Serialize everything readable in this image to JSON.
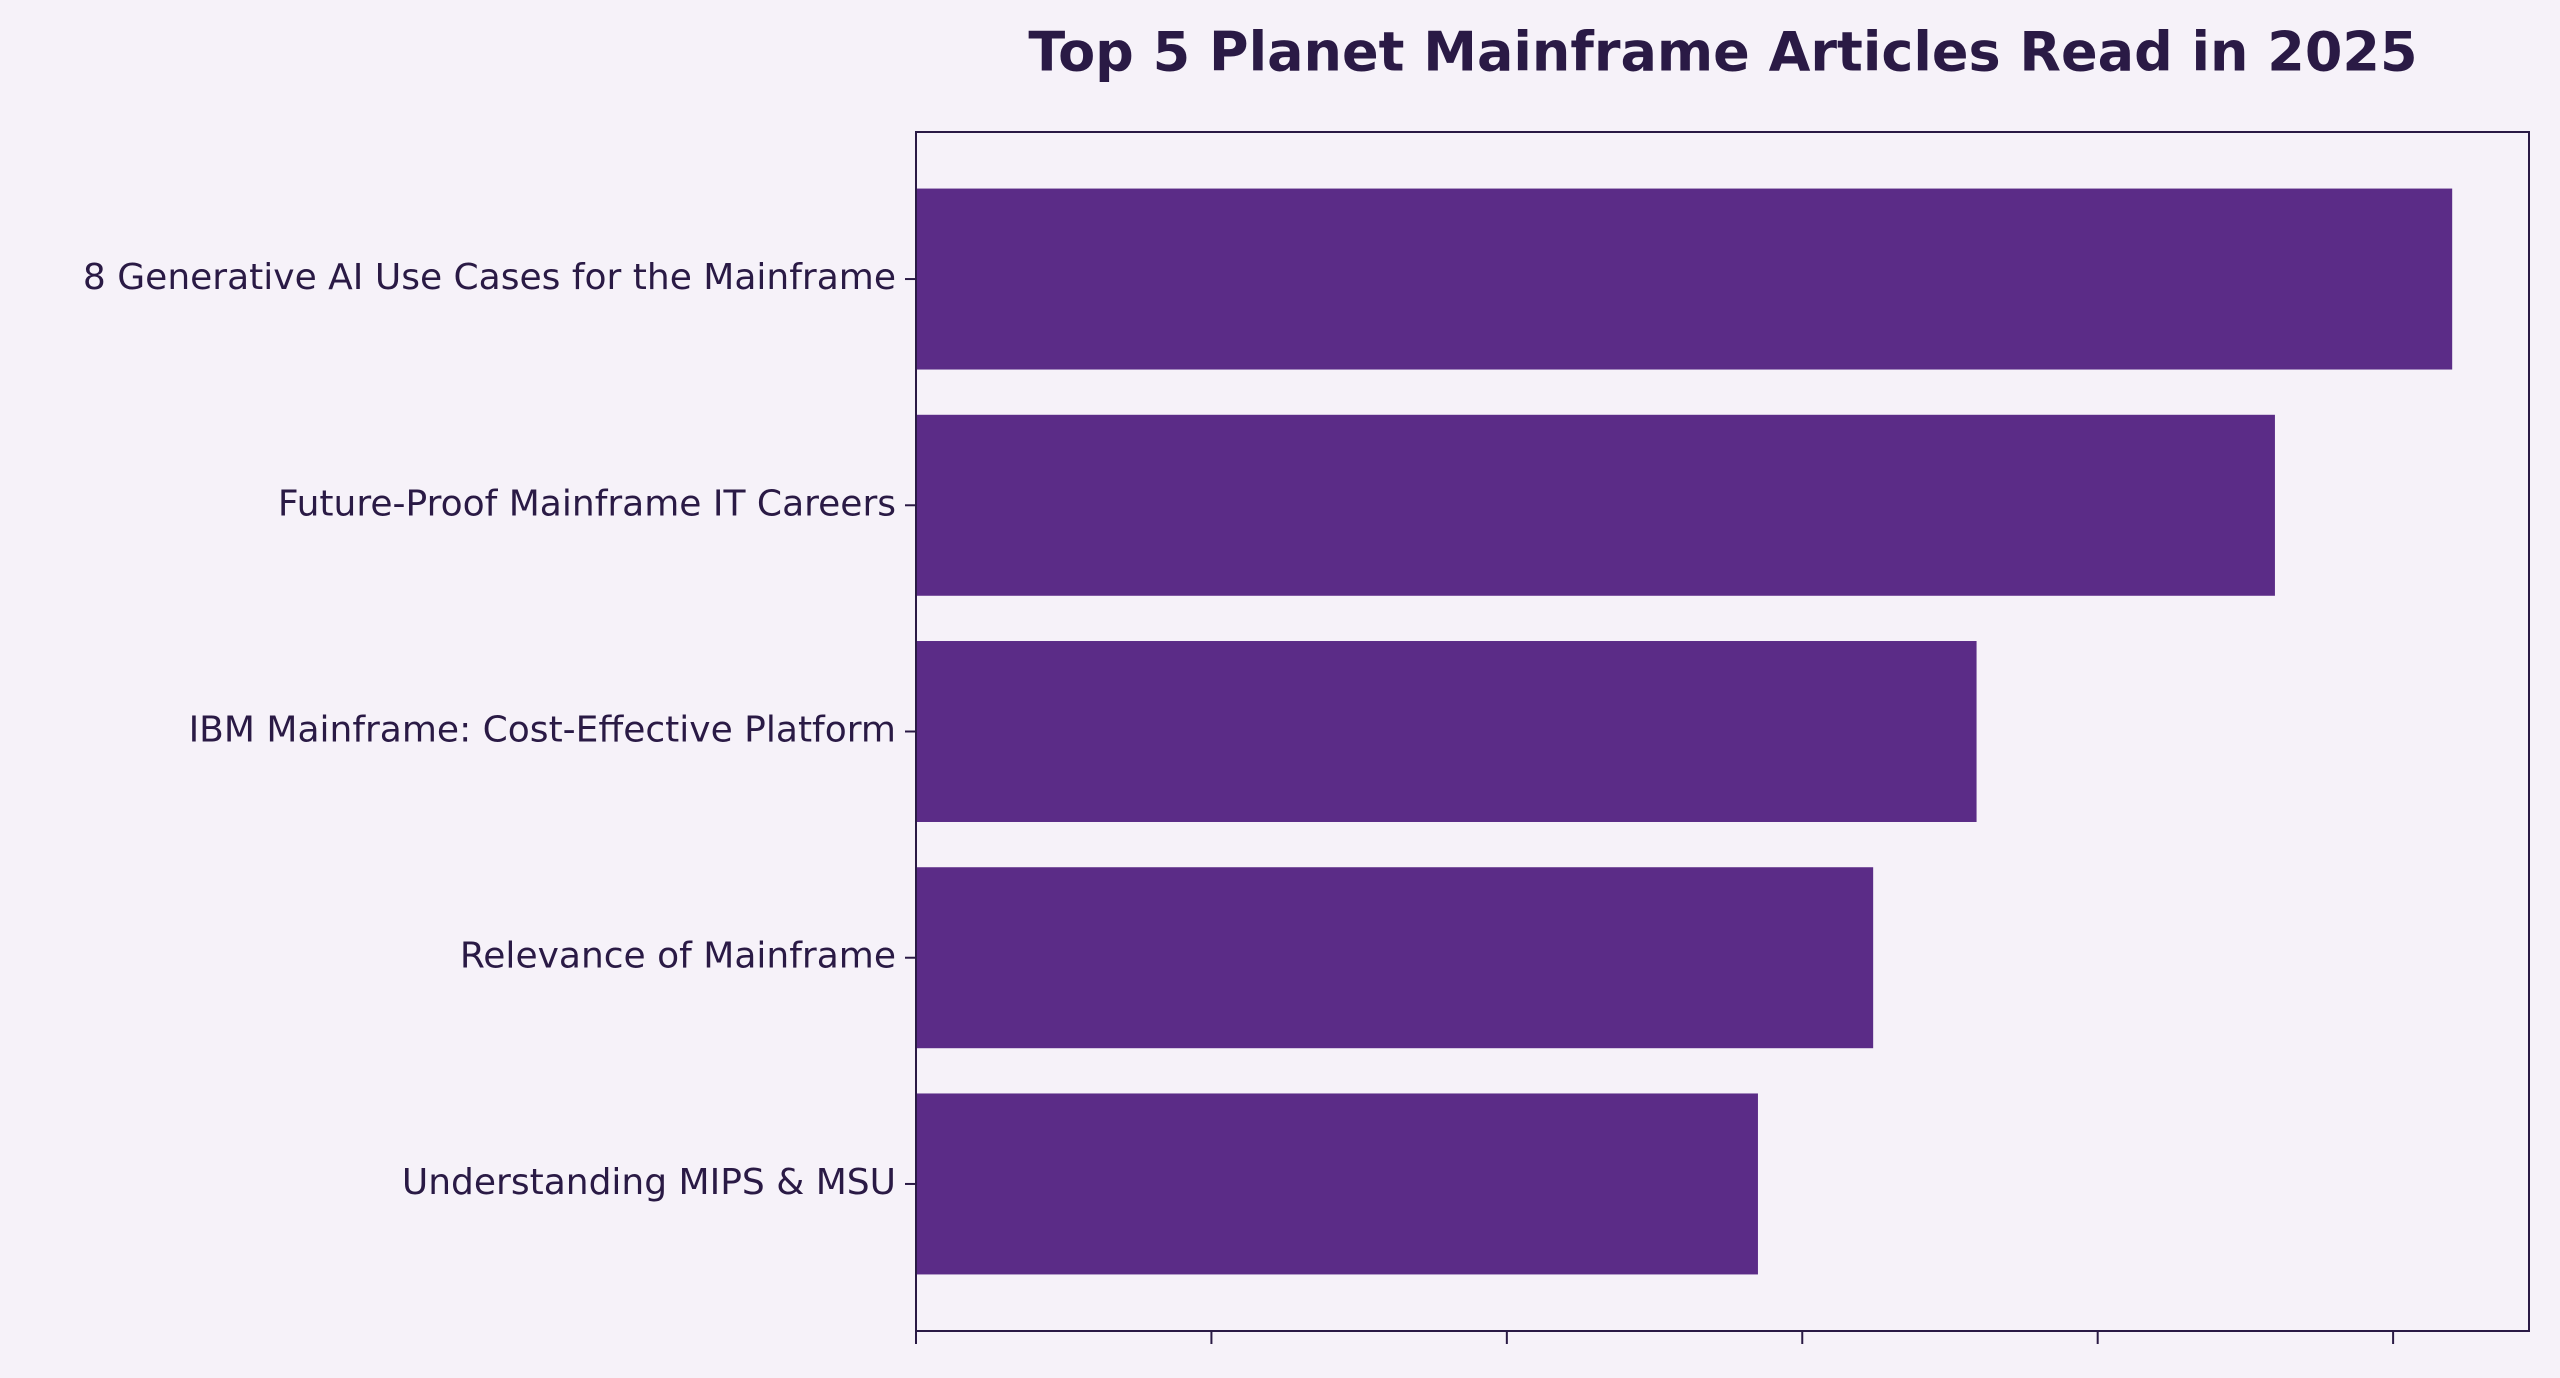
{
  "chart_data": {
    "type": "bar",
    "orientation": "horizontal",
    "title": "Top 5 Planet Mainframe Articles Read in 2025",
    "categories": [
      "8 Generative AI Use Cases for the Mainframe",
      "Future-Proof Mainframe IT Careers",
      "IBM Mainframe: Cost-Effective Platform",
      "Relevance of Mainframe",
      "Understanding MIPS & MSU"
    ],
    "values": [
      5.2,
      4.6,
      3.59,
      3.24,
      2.85
    ],
    "color": "#5b2c87",
    "xlim": [
      0,
      5.46
    ],
    "xticks": [
      0,
      1,
      2,
      3,
      4,
      5
    ],
    "grid": false
  }
}
